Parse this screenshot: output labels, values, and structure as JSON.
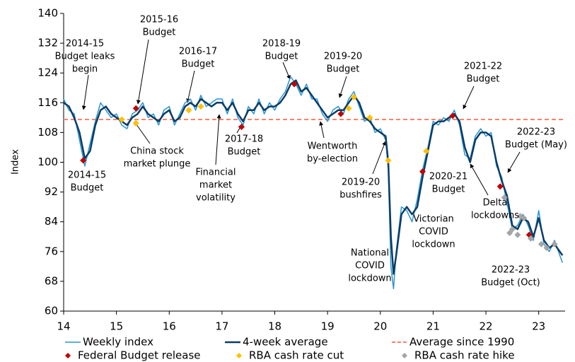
{
  "chart_data": {
    "type": "line",
    "y_label": "Index",
    "xlim": [
      14,
      23.5
    ],
    "xticks": [
      14,
      15,
      16,
      17,
      18,
      19,
      20,
      21,
      22,
      23
    ],
    "ylim": [
      60,
      140
    ],
    "yticks": [
      60,
      68,
      76,
      84,
      92,
      100,
      108,
      116,
      124,
      132,
      140
    ],
    "x": [
      14,
      14.1,
      14.2,
      14.3,
      14.4,
      14.5,
      14.6,
      14.7,
      14.8,
      14.9,
      15,
      15.1,
      15.2,
      15.3,
      15.4,
      15.5,
      15.6,
      15.7,
      15.8,
      15.9,
      16,
      16.1,
      16.2,
      16.3,
      16.4,
      16.5,
      16.6,
      16.7,
      16.8,
      16.9,
      17,
      17.1,
      17.2,
      17.3,
      17.4,
      17.5,
      17.6,
      17.7,
      17.8,
      17.9,
      18,
      18.1,
      18.2,
      18.3,
      18.4,
      18.5,
      18.6,
      18.7,
      18.8,
      18.9,
      19,
      19.1,
      19.2,
      19.3,
      19.4,
      19.5,
      19.6,
      19.7,
      19.8,
      19.9,
      20,
      20.1,
      20.15,
      20.2,
      20.25,
      20.3,
      20.4,
      20.5,
      20.6,
      20.7,
      20.8,
      20.9,
      21,
      21.1,
      21.2,
      21.3,
      21.4,
      21.5,
      21.6,
      21.7,
      21.8,
      21.9,
      22,
      22.1,
      22.2,
      22.3,
      22.4,
      22.5,
      22.6,
      22.7,
      22.8,
      22.9,
      23,
      23.1,
      23.2,
      23.3,
      23.4,
      23.45
    ],
    "series": [
      {
        "name": "Weekly index",
        "color": "#2a95d2",
        "width": 1.5,
        "values": [
          117,
          114,
          113,
          106,
          99,
          105,
          111,
          116,
          114,
          112,
          113,
          110,
          109,
          113,
          114,
          116,
          112,
          113,
          110,
          114,
          115,
          110,
          113,
          116,
          117,
          114,
          118,
          115,
          116,
          117,
          117,
          113,
          117,
          112,
          110,
          115,
          113,
          117,
          113,
          116,
          114,
          117,
          119,
          123,
          121,
          118,
          121,
          117,
          117,
          113,
          111,
          114,
          115,
          113,
          117,
          119,
          115,
          111,
          112,
          108,
          109,
          106,
          98,
          72,
          66,
          76,
          88,
          87,
          84,
          90,
          98,
          104,
          111,
          110,
          112,
          111,
          114,
          110,
          102,
          101,
          107,
          109,
          107,
          108,
          99,
          96,
          89,
          82,
          83,
          86,
          83,
          79,
          87,
          78,
          76,
          79,
          75,
          73
        ]
      },
      {
        "name": "4-week average",
        "color": "#0b3d66",
        "width": 2.5,
        "values": [
          116,
          115,
          112,
          108,
          101,
          103,
          110,
          114,
          115,
          113,
          112,
          111,
          110,
          112,
          113,
          115,
          113,
          112,
          111,
          113,
          114,
          111,
          112,
          115,
          116,
          115,
          117,
          116,
          115,
          116,
          116,
          114,
          116,
          113,
          111,
          114,
          114,
          116,
          114,
          115,
          115,
          116,
          118,
          121,
          122,
          119,
          120,
          118,
          116,
          114,
          112,
          113,
          114,
          114,
          116,
          118,
          116,
          112,
          111,
          109,
          108,
          107,
          100,
          80,
          70,
          75,
          86,
          88,
          86,
          88,
          96,
          103,
          110,
          111,
          111,
          112,
          113,
          111,
          104,
          100,
          106,
          108,
          108,
          107,
          100,
          95,
          91,
          83,
          82,
          85,
          84,
          80,
          85,
          79,
          77,
          78,
          76,
          75
        ]
      }
    ],
    "reference_line": {
      "name": "Average since 1990",
      "value": 111.5,
      "color": "#f4846c"
    },
    "points": [
      {
        "name": "Federal Budget release",
        "color": "#c00000",
        "x": [
          14.37,
          15.37,
          17.37,
          18.37,
          19.25,
          20.8,
          21.37,
          22.27,
          22.82
        ],
        "y": [
          100.5,
          114.5,
          109.5,
          121,
          113,
          97.5,
          112.5,
          93.5,
          80.5
        ]
      },
      {
        "name": "RBA cash rate cut",
        "color": "#ffc000",
        "x": [
          15.1,
          15.37,
          16.37,
          16.6,
          19.4,
          19.5,
          19.8,
          20.15,
          20.87
        ],
        "y": [
          111.5,
          110.5,
          114,
          115,
          114.5,
          117.5,
          112,
          100.5,
          103
        ]
      },
      {
        "name": "RBA cash rate hike",
        "color": "#a5a5a5",
        "x": [
          22.35,
          22.45,
          22.5,
          22.6,
          22.65,
          22.72,
          22.85,
          23.05,
          23.15,
          23.3
        ],
        "y": [
          90.5,
          81,
          82,
          80.5,
          85.5,
          85,
          79.5,
          78,
          77,
          78
        ]
      }
    ],
    "annotations": [
      [
        "2014-15",
        "Budget leaks",
        "begin"
      ],
      [
        "2015-16",
        "Budget"
      ],
      [
        "2016-17",
        "Budget"
      ],
      [
        "2018-19",
        "Budget"
      ],
      [
        "2019-20",
        "Budget"
      ],
      [
        "2021-22",
        "Budget"
      ],
      [
        "2022-23",
        "Budget (May)"
      ],
      [
        "2014-15",
        "Budget"
      ],
      [
        "China stock",
        "market plunge"
      ],
      [
        "Financial",
        "market",
        "volatility"
      ],
      [
        "2017-18",
        "Budget"
      ],
      [
        "Wentworth",
        "by-election"
      ],
      [
        "2019-20",
        "bushfires"
      ],
      [
        "National",
        "COVID",
        "lockdown"
      ],
      [
        "Victorian",
        "COVID",
        "lockdown"
      ],
      [
        "2020-21",
        "Budget"
      ],
      [
        "Delta",
        "lockdowns"
      ],
      [
        "2022-23",
        "Budget (Oct)"
      ]
    ]
  }
}
